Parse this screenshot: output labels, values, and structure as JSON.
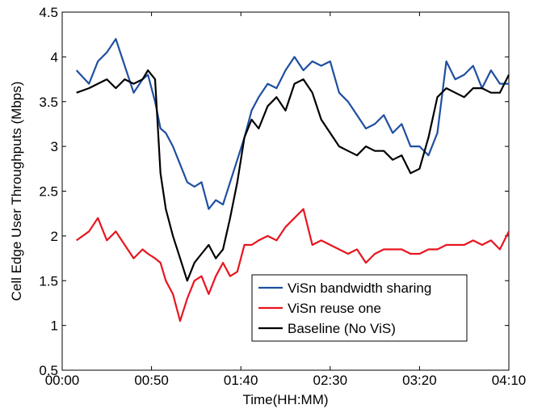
{
  "chart_data": {
    "type": "line",
    "title": "",
    "xlabel": "Time(HH:MM)",
    "ylabel": "Cell Edge User Throughputs (Mbps)",
    "xlim": [
      0,
      250
    ],
    "ylim": [
      0.5,
      4.5
    ],
    "x_ticks": [
      0,
      50,
      100,
      150,
      200,
      250
    ],
    "x_tick_labels": [
      "00:00",
      "00:50",
      "01:40",
      "02:30",
      "03:20",
      "04:10"
    ],
    "y_ticks": [
      0.5,
      1,
      1.5,
      2,
      2.5,
      3,
      3.5,
      4,
      4.5
    ],
    "y_tick_labels": [
      "0.5",
      "1",
      "1.5",
      "2",
      "2.5",
      "3",
      "3.5",
      "4",
      "4.5"
    ],
    "grid": false,
    "legend_position": "bottom-center",
    "x": [
      8,
      15,
      20,
      25,
      30,
      35,
      40,
      45,
      48,
      52,
      55,
      58,
      62,
      66,
      70,
      74,
      78,
      82,
      86,
      90,
      94,
      98,
      102,
      106,
      110,
      115,
      120,
      125,
      130,
      135,
      140,
      145,
      150,
      155,
      160,
      165,
      170,
      175,
      180,
      185,
      190,
      195,
      200,
      205,
      210,
      215,
      220,
      225,
      230,
      235,
      240,
      245,
      250
    ],
    "series": [
      {
        "name": "ViSn bandwidth sharing",
        "color": "#1f4fa0",
        "values": [
          3.85,
          3.7,
          3.95,
          4.05,
          4.2,
          3.9,
          3.6,
          3.75,
          3.8,
          3.5,
          3.2,
          3.15,
          3.0,
          2.8,
          2.6,
          2.55,
          2.6,
          2.3,
          2.4,
          2.35,
          2.6,
          2.85,
          3.1,
          3.4,
          3.55,
          3.7,
          3.65,
          3.85,
          4.0,
          3.85,
          3.95,
          3.9,
          3.95,
          3.6,
          3.5,
          3.35,
          3.2,
          3.25,
          3.35,
          3.15,
          3.25,
          3.0,
          3.0,
          2.9,
          3.15,
          3.95,
          3.75,
          3.8,
          3.9,
          3.65,
          3.85,
          3.7,
          3.7
        ]
      },
      {
        "name": "ViSn reuse one",
        "color": "#e8151f",
        "values": [
          1.95,
          2.05,
          2.2,
          1.95,
          2.05,
          1.9,
          1.75,
          1.85,
          1.8,
          1.75,
          1.7,
          1.5,
          1.35,
          1.05,
          1.3,
          1.5,
          1.55,
          1.35,
          1.55,
          1.7,
          1.55,
          1.6,
          1.9,
          1.9,
          1.95,
          2.0,
          1.95,
          2.1,
          2.2,
          2.3,
          1.9,
          1.95,
          1.9,
          1.85,
          1.8,
          1.85,
          1.7,
          1.8,
          1.85,
          1.85,
          1.85,
          1.8,
          1.8,
          1.85,
          1.85,
          1.9,
          1.9,
          1.9,
          1.95,
          1.9,
          1.95,
          1.85,
          2.05
        ]
      },
      {
        "name": "Baseline (No ViS)",
        "color": "#000000",
        "values": [
          3.6,
          3.65,
          3.7,
          3.75,
          3.65,
          3.75,
          3.7,
          3.75,
          3.85,
          3.75,
          2.7,
          2.3,
          2.0,
          1.75,
          1.5,
          1.7,
          1.8,
          1.9,
          1.75,
          1.85,
          2.2,
          2.6,
          3.1,
          3.3,
          3.2,
          3.45,
          3.55,
          3.4,
          3.7,
          3.75,
          3.6,
          3.3,
          3.15,
          3.0,
          2.95,
          2.9,
          3.0,
          2.95,
          2.95,
          2.85,
          2.9,
          2.7,
          2.75,
          3.1,
          3.55,
          3.65,
          3.6,
          3.55,
          3.65,
          3.65,
          3.6,
          3.6,
          3.8
        ]
      }
    ]
  }
}
